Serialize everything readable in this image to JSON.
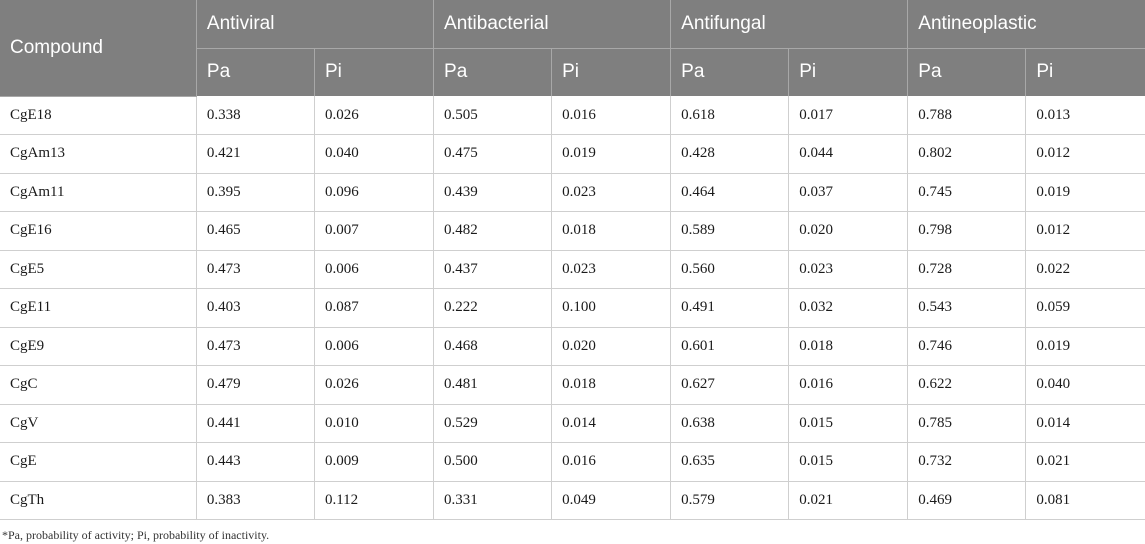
{
  "table": {
    "compound_header": "Compound",
    "groups": [
      "Antiviral",
      "Antibacterial",
      "Antifungal",
      "Antineoplastic"
    ],
    "subheaders": [
      "Pa",
      "Pi",
      "Pa",
      "Pi",
      "Pa",
      "Pi",
      "Pa",
      "Pi"
    ],
    "rows": [
      {
        "compound": "CgE18",
        "values": [
          "0.338",
          "0.026",
          "0.505",
          "0.016",
          "0.618",
          "0.017",
          "0.788",
          "0.013"
        ]
      },
      {
        "compound": "CgAm13",
        "values": [
          "0.421",
          "0.040",
          "0.475",
          "0.019",
          "0.428",
          "0.044",
          "0.802",
          "0.012"
        ]
      },
      {
        "compound": "CgAm11",
        "values": [
          "0.395",
          "0.096",
          "0.439",
          "0.023",
          "0.464",
          "0.037",
          "0.745",
          "0.019"
        ]
      },
      {
        "compound": "CgE16",
        "values": [
          "0.465",
          "0.007",
          "0.482",
          "0.018",
          "0.589",
          "0.020",
          "0.798",
          "0.012"
        ]
      },
      {
        "compound": "CgE5",
        "values": [
          "0.473",
          "0.006",
          "0.437",
          "0.023",
          "0.560",
          "0.023",
          "0.728",
          "0.022"
        ]
      },
      {
        "compound": "CgE11",
        "values": [
          "0.403",
          "0.087",
          "0.222",
          "0.100",
          "0.491",
          "0.032",
          "0.543",
          "0.059"
        ]
      },
      {
        "compound": "CgE9",
        "values": [
          "0.473",
          "0.006",
          "0.468",
          "0.020",
          "0.601",
          "0.018",
          "0.746",
          "0.019"
        ]
      },
      {
        "compound": "CgC",
        "values": [
          "0.479",
          "0.026",
          "0.481",
          "0.018",
          "0.627",
          "0.016",
          "0.622",
          "0.040"
        ]
      },
      {
        "compound": "CgV",
        "values": [
          "0.441",
          "0.010",
          "0.529",
          "0.014",
          "0.638",
          "0.015",
          "0.785",
          "0.014"
        ]
      },
      {
        "compound": "CgE",
        "values": [
          "0.443",
          "0.009",
          "0.500",
          "0.016",
          "0.635",
          "0.015",
          "0.732",
          "0.021"
        ]
      },
      {
        "compound": "CgTh",
        "values": [
          "0.383",
          "0.112",
          "0.331",
          "0.049",
          "0.579",
          "0.021",
          "0.469",
          "0.081"
        ]
      }
    ]
  },
  "footnote": "*Pa, probability of activity; Pi, probability of inactivity.",
  "colors": {
    "header_background": "#7f7f7f",
    "header_text": "#ffffff",
    "grid_line": "#cfcfcf"
  }
}
